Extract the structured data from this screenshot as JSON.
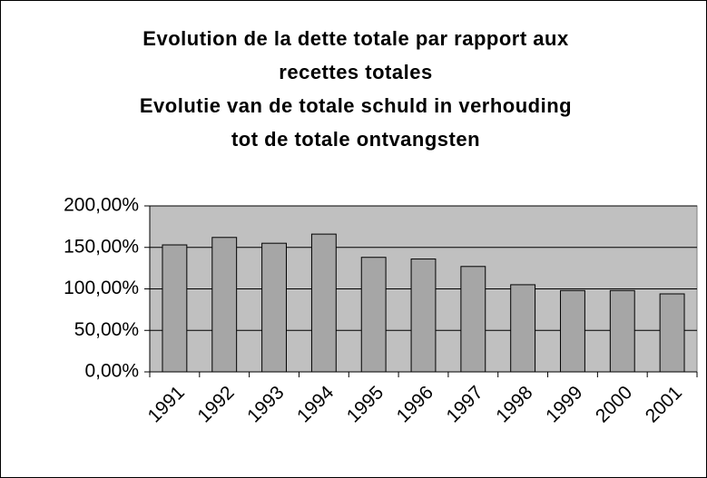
{
  "chart_data": {
    "type": "bar",
    "title": [
      "Evolution de la dette totale par rapport aux",
      "recettes totales",
      "Evolutie van de totale schuld in verhouding",
      "tot de totale ontvangsten"
    ],
    "categories": [
      "1991",
      "1992",
      "1993",
      "1994",
      "1995",
      "1996",
      "1997",
      "1998",
      "1999",
      "2000",
      "2001"
    ],
    "values": [
      153,
      162,
      155,
      166,
      138,
      136,
      127,
      105,
      98,
      98,
      94
    ],
    "color": "#a6a6a6",
    "plot_background": "#c0c0c0",
    "ylim": [
      0,
      200
    ],
    "yticks": [
      {
        "value": 0,
        "label": "0,00%"
      },
      {
        "value": 50,
        "label": "50,00%"
      },
      {
        "value": 100,
        "label": "100,00%"
      },
      {
        "value": 150,
        "label": "150,00%"
      },
      {
        "value": 200,
        "label": "200,00%"
      }
    ],
    "grid": true
  }
}
